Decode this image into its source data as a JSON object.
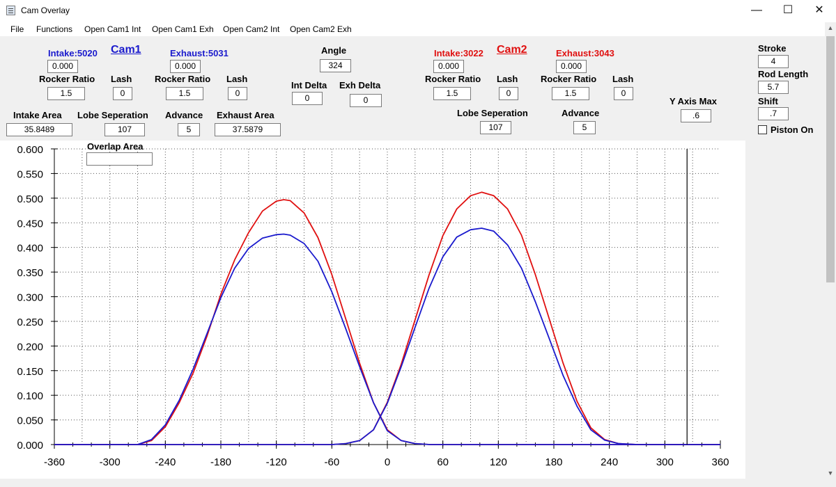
{
  "window": {
    "title": "Cam Overlay",
    "minimize_glyph": "—",
    "maximize_glyph": "☐",
    "close_glyph": "✕",
    "icon": "app-document-icon"
  },
  "menu": [
    "File",
    "Functions",
    "Open Cam1 Int",
    "Open Cam1 Exh",
    "Open Cam2 Int",
    "Open Cam2 Exh"
  ],
  "cam1": {
    "title": "Cam1",
    "intake_label": "Intake:5020",
    "exhaust_label": "Exhaust:5031",
    "intake_value": "0.000",
    "exhaust_value": "0.000",
    "rocker_ratio_label": "Rocker Ratio",
    "lash_label": "Lash",
    "intake_rocker_ratio": "1.5",
    "intake_lash": "0",
    "exhaust_rocker_ratio": "1.5",
    "exhaust_lash": "0",
    "intake_area_label": "Intake Area",
    "intake_area": "35.8489",
    "lobe_sep_label": "Lobe Seperation",
    "lobe_sep": "107",
    "advance_label": "Advance",
    "advance": "5",
    "exhaust_area_label": "Exhaust Area",
    "exhaust_area": "37.5879",
    "color": "#1a1acd"
  },
  "center": {
    "angle_label": "Angle",
    "angle": "324",
    "int_delta_label": "Int Delta",
    "int_delta": "0",
    "exh_delta_label": "Exh Delta",
    "exh_delta": "0",
    "overlap_area_label": "Overlap Area",
    "overlap_area": ""
  },
  "cam2": {
    "title": "Cam2",
    "intake_label": "Intake:3022",
    "exhaust_label": "Exhaust:3043",
    "intake_value": "0.000",
    "exhaust_value": "0.000",
    "rocker_ratio_label": "Rocker Ratio",
    "lash_label": "Lash",
    "intake_rocker_ratio": "1.5",
    "intake_lash": "0",
    "exhaust_rocker_ratio": "1.5",
    "exhaust_lash": "0",
    "lobe_sep_label": "Lobe Seperation",
    "lobe_sep": "107",
    "advance_label": "Advance",
    "advance": "5",
    "color": "#e01010"
  },
  "y_axis_max_label": "Y Axis Max",
  "y_axis_max": ".6",
  "piston": {
    "stroke_label": "Stroke",
    "stroke": "4",
    "rod_length_label": "Rod Length",
    "rod_length": "5.7",
    "shift_label": "Shift",
    "shift": ".7",
    "piston_on_label": "Piston On",
    "piston_on": false
  },
  "chart_data": {
    "type": "line",
    "x_range": [
      -360,
      360
    ],
    "y_range": [
      0,
      0.6
    ],
    "x_ticks": [
      "-360",
      "-300",
      "-240",
      "-180",
      "-120",
      "-60",
      "0",
      "60",
      "120",
      "180",
      "240",
      "300",
      "360"
    ],
    "y_ticks": [
      "0.000",
      "0.050",
      "0.100",
      "0.150",
      "0.200",
      "0.250",
      "0.300",
      "0.350",
      "0.400",
      "0.450",
      "0.500",
      "0.550",
      "0.600"
    ],
    "grid": true,
    "grid_style": "dotted",
    "marker_angle": 324,
    "series": [
      {
        "color": "#e01010",
        "x": [
          -270,
          -255,
          -240,
          -225,
          -210,
          -195,
          -180,
          -165,
          -150,
          -135,
          -120,
          -112,
          -105,
          -90,
          -75,
          -60,
          -45,
          -30,
          -15,
          0,
          15,
          30,
          46
        ],
        "y": [
          0.0,
          0.008,
          0.036,
          0.085,
          0.145,
          0.22,
          0.305,
          0.375,
          0.43,
          0.474,
          0.494,
          0.497,
          0.495,
          0.47,
          0.42,
          0.345,
          0.255,
          0.165,
          0.085,
          0.03,
          0.008,
          0.002,
          0.0
        ]
      },
      {
        "color": "#1a1acd",
        "x": [
          -270,
          -255,
          -240,
          -225,
          -210,
          -195,
          -180,
          -165,
          -150,
          -135,
          -120,
          -112,
          -105,
          -90,
          -75,
          -60,
          -45,
          -30,
          -15,
          0,
          15,
          30,
          46
        ],
        "y": [
          0.0,
          0.01,
          0.04,
          0.09,
          0.153,
          0.225,
          0.298,
          0.358,
          0.398,
          0.419,
          0.426,
          0.427,
          0.425,
          0.408,
          0.372,
          0.31,
          0.235,
          0.158,
          0.085,
          0.028,
          0.008,
          0.002,
          0.0
        ]
      },
      {
        "color": "#e01010",
        "x": [
          -60,
          -45,
          -30,
          -15,
          0,
          15,
          30,
          45,
          60,
          75,
          90,
          102,
          115,
          130,
          145,
          160,
          175,
          190,
          205,
          220,
          235,
          250,
          270
        ],
        "y": [
          0.0,
          0.002,
          0.008,
          0.03,
          0.086,
          0.163,
          0.253,
          0.344,
          0.424,
          0.478,
          0.505,
          0.512,
          0.505,
          0.478,
          0.425,
          0.345,
          0.255,
          0.165,
          0.088,
          0.034,
          0.01,
          0.002,
          0.0
        ]
      },
      {
        "color": "#1a1acd",
        "x": [
          -60,
          -45,
          -30,
          -15,
          0,
          15,
          30,
          45,
          60,
          75,
          90,
          102,
          115,
          130,
          145,
          160,
          175,
          190,
          205,
          220,
          235,
          250,
          270
        ],
        "y": [
          0.0,
          0.002,
          0.008,
          0.03,
          0.084,
          0.158,
          0.238,
          0.317,
          0.381,
          0.421,
          0.436,
          0.439,
          0.433,
          0.405,
          0.358,
          0.29,
          0.215,
          0.14,
          0.078,
          0.03,
          0.009,
          0.002,
          0.0
        ]
      }
    ]
  }
}
